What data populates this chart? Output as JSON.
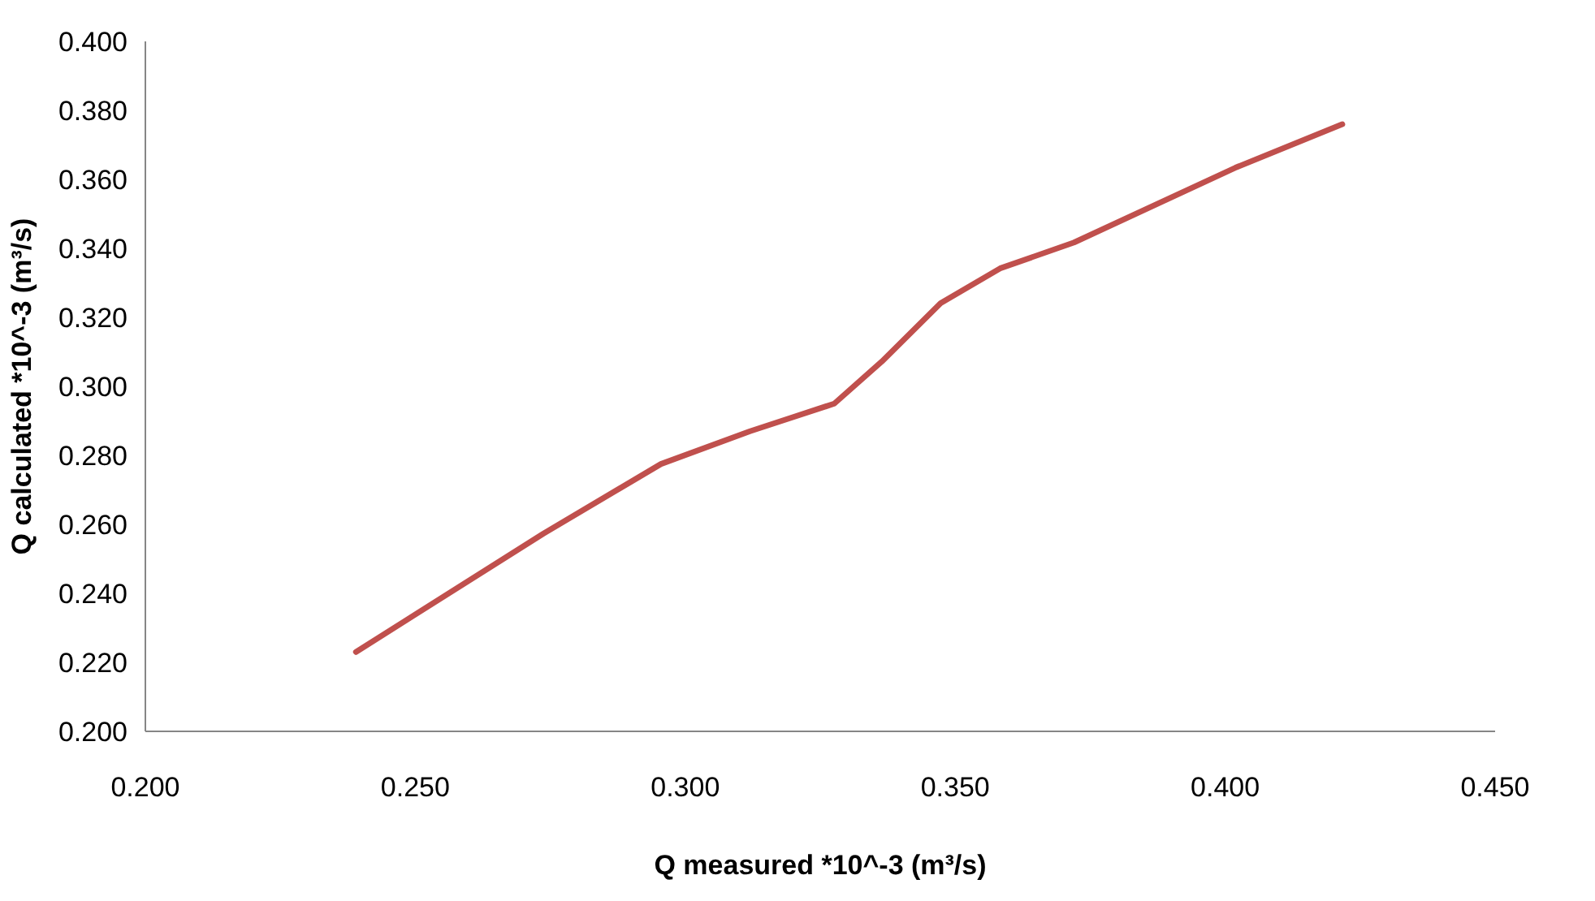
{
  "chart_data": {
    "type": "line",
    "xlabel": "Q measured *10^-3 (m³/s)",
    "ylabel": "Q calculated *10^-3 (m³/s)",
    "x": [
      0.239,
      0.2737,
      0.2955,
      0.312,
      0.3276,
      0.3364,
      0.3473,
      0.3583,
      0.372,
      0.4019,
      0.4217
    ],
    "series": [
      {
        "color": "#c0504d",
        "values": [
          0.223,
          0.2573,
          0.2775,
          0.287,
          0.295,
          0.3072,
          0.3241,
          0.3342,
          0.3417,
          0.3634,
          0.376
        ]
      }
    ],
    "xlim": [
      0.2,
      0.45
    ],
    "xticks": [
      {
        "value": 0.2,
        "label": "0.200"
      },
      {
        "value": 0.25,
        "label": "0.250"
      },
      {
        "value": 0.3,
        "label": "0.300"
      },
      {
        "value": 0.35,
        "label": "0.350"
      },
      {
        "value": 0.4,
        "label": "0.400"
      },
      {
        "value": 0.45,
        "label": "0.450"
      }
    ],
    "ylim": [
      0.2,
      0.4
    ],
    "yticks": [
      {
        "value": 0.2,
        "label": "0.200"
      },
      {
        "value": 0.22,
        "label": "0.220"
      },
      {
        "value": 0.24,
        "label": "0.240"
      },
      {
        "value": 0.26,
        "label": "0.260"
      },
      {
        "value": 0.28,
        "label": "0.280"
      },
      {
        "value": 0.3,
        "label": "0.300"
      },
      {
        "value": 0.32,
        "label": "0.320"
      },
      {
        "value": 0.34,
        "label": "0.340"
      },
      {
        "value": 0.36,
        "label": "0.360"
      },
      {
        "value": 0.38,
        "label": "0.380"
      },
      {
        "value": 0.4,
        "label": "0.400"
      }
    ],
    "grid": false,
    "marker": "none",
    "line_style": "solid"
  }
}
